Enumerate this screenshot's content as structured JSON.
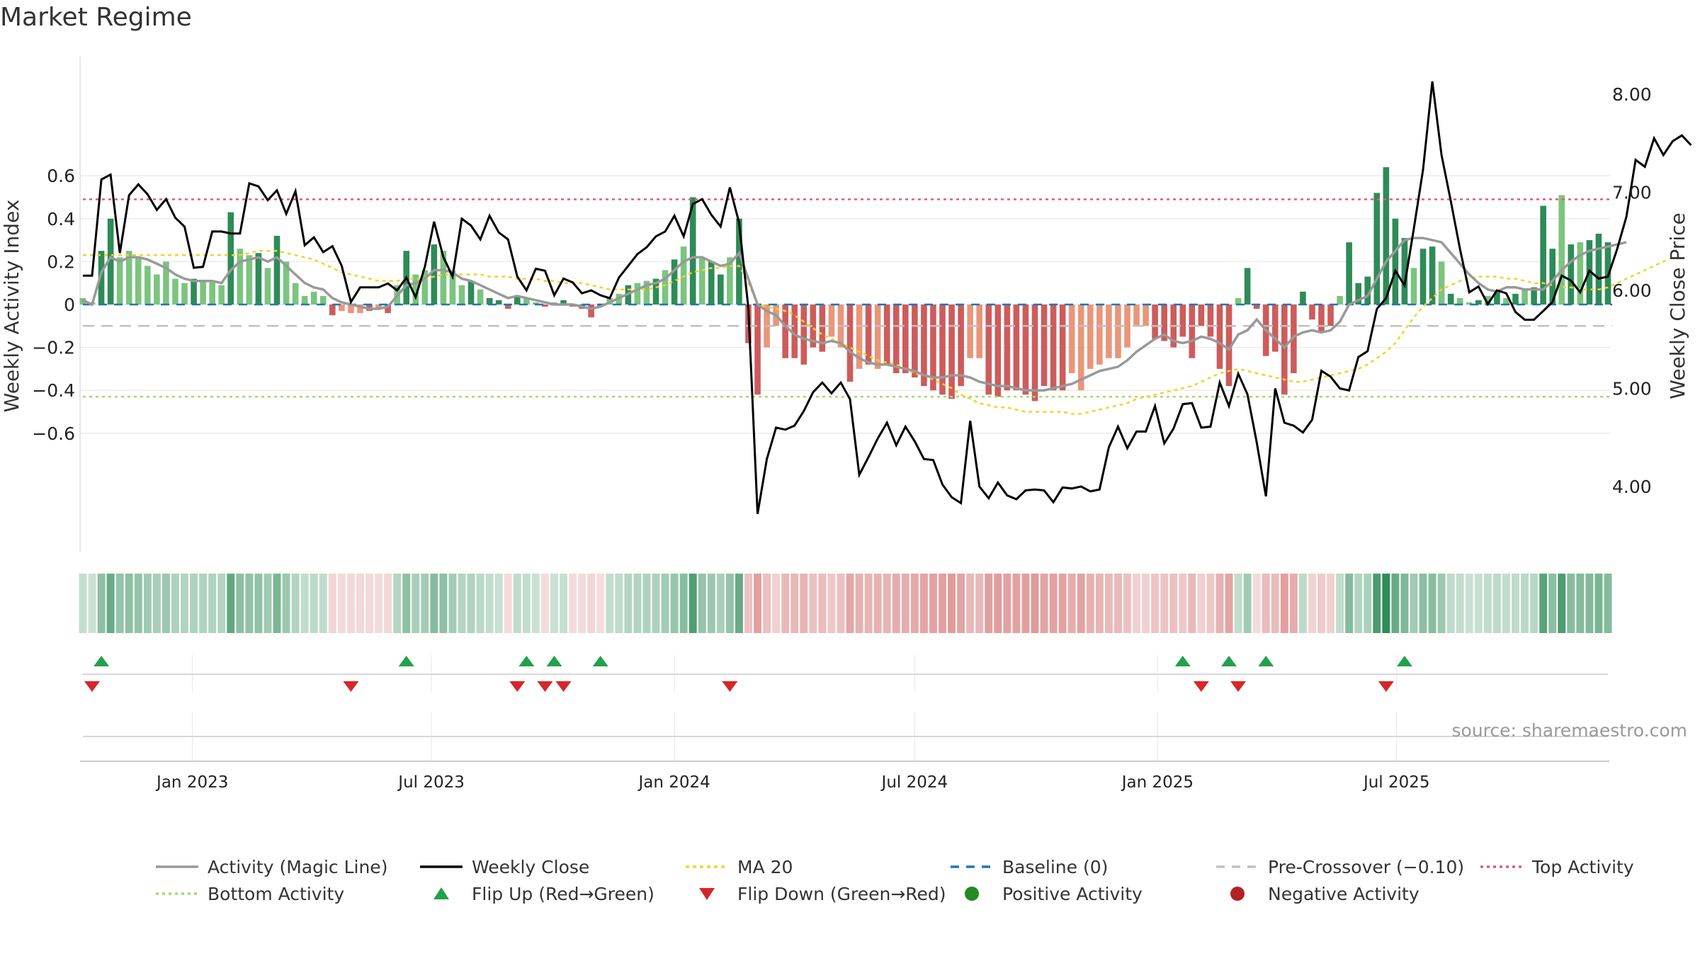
{
  "title": "Market Regime",
  "source": "source: sharemaestro.com",
  "colors": {
    "dark_green": "#2e8b57",
    "light_green": "#7cc47f",
    "dark_red": "#cd5c5c",
    "light_red": "#e9967a",
    "magic_line": "#999999",
    "close": "#000000",
    "ma20": "#f2d22e",
    "baseline": "#1f77b4",
    "pre_crossover": "#c0c0c0",
    "top_activity": "#e05a7a",
    "bottom_activity": "#a8d86e",
    "flip_up": "#22a04b",
    "flip_down": "#d62728",
    "positive": "#228b22",
    "negative": "#b22222"
  },
  "chart_data": {
    "type": "bar",
    "x_start": "2022-10-10",
    "x_interval_days": 7,
    "x_ticks": [
      {
        "label": "Jan 2023",
        "date": "2023-01-01"
      },
      {
        "label": "Jul 2023",
        "date": "2023-07-01"
      },
      {
        "label": "Jan 2024",
        "date": "2024-01-01"
      },
      {
        "label": "Jul 2024",
        "date": "2024-07-01"
      },
      {
        "label": "Jan 2025",
        "date": "2025-01-01"
      },
      {
        "label": "Jul 2025",
        "date": "2025-07-01"
      }
    ],
    "y_left": {
      "label": "Weekly Activity Index",
      "ylim": [
        -0.7,
        0.7
      ],
      "ticks": [
        0.6,
        0.4,
        0.2,
        0,
        -0.2,
        -0.4,
        -0.6
      ],
      "tick_labels": [
        "0.6",
        "0.4",
        "0.2",
        "0",
        "−0.2",
        "−0.4",
        "−0.6"
      ]
    },
    "y_right": {
      "label": "Weekly Close Price",
      "ylim": [
        3.55,
        8.45
      ],
      "ticks": [
        8.0,
        7.0,
        6.0,
        5.0,
        4.0
      ],
      "tick_labels": [
        "8.00",
        "7.00",
        "6.00",
        "5.00",
        "4.00"
      ]
    },
    "thresholds": {
      "top_activity": 0.49,
      "bottom_activity": -0.43,
      "pre_crossover": -0.1,
      "baseline": 0
    },
    "activity": [
      0.03,
      0.01,
      0.25,
      0.4,
      0.22,
      0.25,
      0.22,
      0.18,
      0.14,
      0.2,
      0.12,
      0.1,
      0.12,
      0.11,
      0.11,
      0.09,
      0.43,
      0.26,
      0.23,
      0.24,
      0.17,
      0.32,
      0.2,
      0.1,
      0.04,
      0.06,
      0.04,
      -0.05,
      -0.03,
      -0.04,
      -0.04,
      -0.03,
      -0.02,
      -0.04,
      0.09,
      0.25,
      0.14,
      0.16,
      0.28,
      0.25,
      0.16,
      0.09,
      0.11,
      0.07,
      0.03,
      0.02,
      -0.02,
      0.04,
      0.03,
      0.01,
      -0.01,
      0.01,
      0.02,
      -0.01,
      -0.02,
      -0.06,
      -0.01,
      0.03,
      0.05,
      0.09,
      0.1,
      0.11,
      0.12,
      0.16,
      0.21,
      0.27,
      0.5,
      0.22,
      0.2,
      0.14,
      0.22,
      0.4,
      -0.18,
      -0.42,
      -0.2,
      -0.1,
      -0.25,
      -0.25,
      -0.28,
      -0.2,
      -0.22,
      -0.15,
      -0.2,
      -0.36,
      -0.3,
      -0.28,
      -0.3,
      -0.28,
      -0.32,
      -0.32,
      -0.34,
      -0.38,
      -0.4,
      -0.42,
      -0.44,
      -0.38,
      -0.25,
      -0.25,
      -0.42,
      -0.43,
      -0.4,
      -0.4,
      -0.42,
      -0.45,
      -0.38,
      -0.4,
      -0.4,
      -0.32,
      -0.4,
      -0.3,
      -0.28,
      -0.25,
      -0.25,
      -0.2,
      -0.1,
      -0.1,
      -0.16,
      -0.17,
      -0.2,
      -0.15,
      -0.25,
      -0.1,
      -0.15,
      -0.3,
      -0.38,
      0.03,
      0.17,
      -0.02,
      -0.24,
      -0.22,
      -0.42,
      -0.32,
      0.06,
      -0.07,
      -0.13,
      -0.1,
      0.04,
      0.29,
      0.1,
      0.13,
      0.52,
      0.64,
      0.4,
      0.31,
      0.17,
      0.26,
      0.27,
      0.2,
      0.05,
      0.03,
      0.01,
      0.02,
      0.04,
      0.06,
      0.03,
      0.05,
      0.07,
      0.08,
      0.46,
      0.26,
      0.51,
      0.28,
      0.29,
      0.3,
      0.33,
      0.29
    ],
    "activity_dark": [
      0,
      0,
      1,
      1,
      0,
      0,
      0,
      0,
      0,
      0,
      0,
      0,
      1,
      0,
      0,
      0,
      1,
      0,
      0,
      1,
      0,
      1,
      0,
      0,
      0,
      0,
      0,
      1,
      0,
      0,
      0,
      1,
      0,
      1,
      0,
      1,
      0,
      0,
      1,
      0,
      0,
      0,
      1,
      0,
      1,
      1,
      1,
      1,
      0,
      0,
      1,
      0,
      1,
      1,
      1,
      1,
      1,
      0,
      0,
      1,
      0,
      0,
      1,
      0,
      1,
      0,
      1,
      0,
      1,
      1,
      0,
      1,
      1,
      1,
      0,
      0,
      1,
      1,
      1,
      1,
      1,
      0,
      0,
      1,
      0,
      1,
      0,
      1,
      1,
      1,
      1,
      1,
      1,
      1,
      1,
      1,
      0,
      0,
      1,
      1,
      1,
      1,
      1,
      1,
      1,
      1,
      1,
      0,
      0,
      0,
      0,
      0,
      0,
      0,
      0,
      0,
      1,
      1,
      1,
      1,
      1,
      1,
      1,
      1,
      1,
      0,
      1,
      1,
      1,
      1,
      1,
      1,
      1,
      1,
      1,
      1,
      0,
      1,
      1,
      1,
      1,
      1,
      1,
      1,
      0,
      1,
      1,
      0,
      1,
      0,
      0,
      1,
      0,
      1,
      0,
      1,
      0,
      1,
      1,
      1,
      0,
      1,
      0,
      1,
      1,
      1,
      1,
      0
    ],
    "magic_line": [
      0.02,
      0.0,
      0.15,
      0.22,
      0.2,
      0.22,
      0.22,
      0.21,
      0.19,
      0.17,
      0.14,
      0.12,
      0.11,
      0.11,
      0.11,
      0.1,
      0.16,
      0.2,
      0.21,
      0.22,
      0.2,
      0.22,
      0.18,
      0.14,
      0.1,
      0.08,
      0.07,
      0.03,
      0.01,
      0.0,
      -0.01,
      -0.02,
      -0.02,
      -0.01,
      0.04,
      0.09,
      0.1,
      0.12,
      0.16,
      0.16,
      0.15,
      0.12,
      0.11,
      0.09,
      0.07,
      0.05,
      0.03,
      0.04,
      0.03,
      0.02,
      0.01,
      0.0,
      0.0,
      0.0,
      -0.01,
      -0.02,
      -0.01,
      0.01,
      0.03,
      0.05,
      0.07,
      0.09,
      0.1,
      0.12,
      0.16,
      0.2,
      0.22,
      0.22,
      0.2,
      0.18,
      0.19,
      0.24,
      0.12,
      0.0,
      -0.03,
      -0.05,
      -0.1,
      -0.14,
      -0.16,
      -0.17,
      -0.18,
      -0.17,
      -0.18,
      -0.22,
      -0.25,
      -0.27,
      -0.28,
      -0.28,
      -0.29,
      -0.3,
      -0.31,
      -0.33,
      -0.34,
      -0.34,
      -0.33,
      -0.33,
      -0.34,
      -0.36,
      -0.37,
      -0.38,
      -0.38,
      -0.39,
      -0.4,
      -0.4,
      -0.4,
      -0.39,
      -0.38,
      -0.37,
      -0.35,
      -0.33,
      -0.31,
      -0.3,
      -0.29,
      -0.26,
      -0.22,
      -0.19,
      -0.16,
      -0.14,
      -0.17,
      -0.18,
      -0.17,
      -0.15,
      -0.16,
      -0.18,
      -0.21,
      -0.14,
      -0.12,
      -0.07,
      -0.12,
      -0.16,
      -0.2,
      -0.15,
      -0.13,
      -0.12,
      -0.13,
      -0.12,
      -0.08,
      0.0,
      0.02,
      0.04,
      0.12,
      0.2,
      0.25,
      0.3,
      0.31,
      0.31,
      0.3,
      0.29,
      0.24,
      0.19,
      0.14,
      0.1,
      0.07,
      0.06,
      0.08,
      0.08,
      0.07,
      0.07,
      0.07,
      0.11,
      0.16,
      0.2,
      0.23,
      0.25,
      0.26,
      0.27,
      0.28,
      0.29
    ],
    "weekly_close": [
      6.15,
      6.15,
      7.13,
      7.18,
      6.38,
      6.97,
      7.08,
      6.98,
      6.82,
      6.93,
      6.74,
      6.65,
      6.23,
      6.24,
      6.6,
      6.6,
      6.58,
      6.58,
      7.09,
      7.06,
      6.92,
      7.02,
      6.78,
      7.01,
      6.46,
      6.54,
      6.39,
      6.45,
      6.25,
      5.88,
      6.03,
      6.03,
      6.03,
      6.07,
      6.0,
      6.13,
      5.93,
      6.24,
      6.7,
      6.34,
      6.14,
      6.73,
      6.66,
      6.52,
      6.76,
      6.59,
      6.52,
      6.14,
      6.0,
      6.22,
      6.2,
      5.95,
      6.12,
      6.08,
      5.97,
      6.0,
      5.95,
      5.92,
      6.13,
      6.25,
      6.37,
      6.44,
      6.55,
      6.6,
      6.76,
      6.55,
      6.88,
      6.93,
      6.77,
      6.65,
      7.05,
      6.69,
      5.82,
      3.72,
      4.28,
      4.6,
      4.58,
      4.62,
      4.77,
      4.96,
      5.06,
      4.95,
      5.06,
      4.89,
      4.12,
      4.3,
      4.49,
      4.65,
      4.42,
      4.61,
      4.46,
      4.28,
      4.27,
      4.02,
      3.89,
      3.83,
      4.67,
      4.0,
      3.88,
      4.04,
      3.91,
      3.87,
      3.96,
      3.97,
      3.96,
      3.84,
      3.99,
      3.98,
      4.0,
      3.95,
      3.97,
      4.4,
      4.61,
      4.39,
      4.56,
      4.56,
      4.82,
      4.44,
      4.59,
      4.84,
      4.85,
      4.6,
      4.61,
      5.06,
      4.82,
      5.15,
      4.94,
      4.45,
      3.9,
      5.0,
      4.65,
      4.62,
      4.55,
      4.68,
      5.18,
      5.12,
      5.0,
      4.98,
      5.32,
      5.38,
      5.81,
      5.92,
      6.2,
      6.05,
      6.63,
      7.23,
      8.13,
      7.38,
      6.91,
      6.42,
      5.98,
      6.04,
      5.86,
      6.0,
      5.97,
      5.78,
      5.7,
      5.7,
      5.79,
      5.88,
      6.15,
      6.1,
      5.98,
      6.2,
      6.12,
      6.14,
      6.42,
      6.75,
      7.33,
      7.26,
      7.55,
      7.38,
      7.52,
      7.58,
      7.48
    ],
    "ma20": [
      0.23,
      0.23,
      0.23,
      0.23,
      0.23,
      0.23,
      0.23,
      0.23,
      0.23,
      0.23,
      0.23,
      0.23,
      0.23,
      0.23,
      0.23,
      0.23,
      0.23,
      0.23,
      0.24,
      0.25,
      0.25,
      0.25,
      0.24,
      0.23,
      0.22,
      0.21,
      0.19,
      0.17,
      0.15,
      0.14,
      0.13,
      0.12,
      0.11,
      0.11,
      0.11,
      0.12,
      0.12,
      0.12,
      0.13,
      0.14,
      0.14,
      0.14,
      0.14,
      0.14,
      0.13,
      0.13,
      0.13,
      0.12,
      0.12,
      0.12,
      0.11,
      0.11,
      0.1,
      0.1,
      0.1,
      0.09,
      0.08,
      0.07,
      0.07,
      0.07,
      0.07,
      0.07,
      0.08,
      0.09,
      0.11,
      0.13,
      0.15,
      0.16,
      0.17,
      0.17,
      0.18,
      0.18,
      0.1,
      0.0,
      -0.01,
      -0.02,
      -0.03,
      -0.05,
      -0.08,
      -0.11,
      -0.14,
      -0.16,
      -0.18,
      -0.2,
      -0.22,
      -0.24,
      -0.26,
      -0.27,
      -0.28,
      -0.3,
      -0.32,
      -0.33,
      -0.35,
      -0.37,
      -0.39,
      -0.42,
      -0.44,
      -0.46,
      -0.47,
      -0.48,
      -0.48,
      -0.49,
      -0.5,
      -0.5,
      -0.5,
      -0.5,
      -0.5,
      -0.51,
      -0.51,
      -0.5,
      -0.49,
      -0.48,
      -0.47,
      -0.46,
      -0.44,
      -0.43,
      -0.42,
      -0.41,
      -0.4,
      -0.39,
      -0.38,
      -0.36,
      -0.34,
      -0.32,
      -0.31,
      -0.3,
      -0.31,
      -0.32,
      -0.33,
      -0.34,
      -0.35,
      -0.36,
      -0.36,
      -0.35,
      -0.34,
      -0.33,
      -0.32,
      -0.31,
      -0.3,
      -0.28,
      -0.25,
      -0.22,
      -0.18,
      -0.12,
      -0.06,
      -0.01,
      0.03,
      0.07,
      0.09,
      0.11,
      0.12,
      0.13,
      0.13,
      0.13,
      0.12,
      0.12,
      0.11,
      0.1,
      0.1,
      0.09,
      0.08,
      0.08,
      0.07,
      0.07,
      0.07,
      0.08,
      0.1,
      0.12,
      0.14,
      0.16,
      0.18,
      0.2,
      0.22
    ],
    "flip_up": [
      2,
      35,
      48,
      51,
      56,
      119,
      124,
      128,
      143
    ],
    "flip_down": [
      1,
      29,
      47,
      50,
      52,
      70,
      121,
      125,
      141
    ],
    "legend": [
      {
        "label": "Activity (Magic Line)",
        "symbol": "line-gray"
      },
      {
        "label": "Weekly Close",
        "symbol": "line-black"
      },
      {
        "label": "MA 20",
        "symbol": "line-yellow-dotted"
      },
      {
        "label": "Baseline (0)",
        "symbol": "line-blue-dashed"
      },
      {
        "label": "Pre-Crossover (−0.10)",
        "symbol": "line-gray-dashed"
      },
      {
        "label": "Top Activity",
        "symbol": "line-pink-dotted"
      },
      {
        "label": "Bottom Activity",
        "symbol": "line-green-dotted"
      },
      {
        "label": "Flip Up (Red→Green)",
        "symbol": "triangle-up-green"
      },
      {
        "label": "Flip Down (Green→Red)",
        "symbol": "triangle-down-red"
      },
      {
        "label": "Positive Activity",
        "symbol": "circle-green"
      },
      {
        "label": "Negative Activity",
        "symbol": "circle-red"
      }
    ]
  }
}
